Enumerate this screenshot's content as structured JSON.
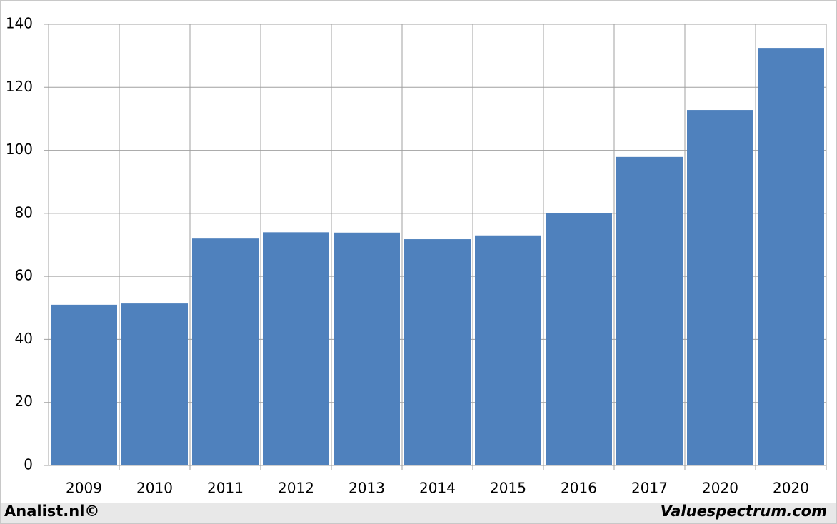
{
  "chart_data": {
    "type": "bar",
    "categories": [
      "2009",
      "2010",
      "2011",
      "2012",
      "2013",
      "2014",
      "2015",
      "2016",
      "2017",
      "2020",
      "2020"
    ],
    "values": [
      51,
      51.4,
      72,
      74,
      73.9,
      71.8,
      73,
      80,
      97.9,
      112.8,
      132.5
    ],
    "color": "#4f81bd",
    "ylim": [
      0,
      140
    ],
    "yticks": [
      0,
      20,
      40,
      60,
      80,
      100,
      120,
      140
    ],
    "grid": true,
    "source_left": "Analist.nl©",
    "source_right": "Valuespectrum.com"
  }
}
